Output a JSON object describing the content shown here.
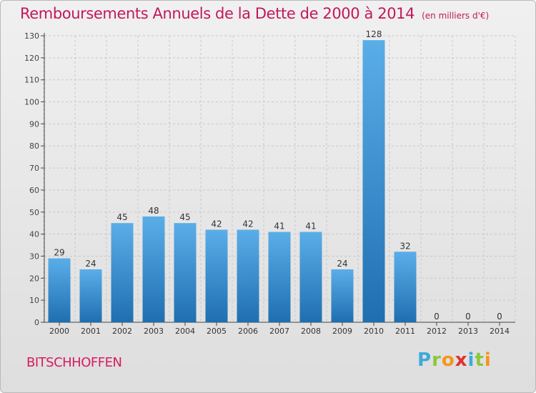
{
  "title": "Remboursements Annuels de la Dette de 2000 à 2014",
  "subtitle": "(en milliers d'€)",
  "commune": "BITSCHHOFFEN",
  "logo": {
    "letters": [
      "P",
      "r",
      "o",
      "x",
      "i",
      "t",
      "i"
    ],
    "colors": [
      "#3fa9dc",
      "#8dc63f",
      "#f7941d",
      "#e2302f",
      "#3fa9dc",
      "#8dc63f",
      "#f7941d"
    ]
  },
  "colors": {
    "title": "#c2185b",
    "bar_light": "#5aaee8",
    "bar_dark": "#1f6fb0",
    "axis": "#444444",
    "grid": "#c8c8c8"
  },
  "chart_data": {
    "type": "bar",
    "categories": [
      "2000",
      "2001",
      "2002",
      "2003",
      "2004",
      "2005",
      "2006",
      "2007",
      "2008",
      "2009",
      "2010",
      "2011",
      "2012",
      "2013",
      "2014"
    ],
    "values": [
      29,
      24,
      45,
      48,
      45,
      42,
      42,
      41,
      41,
      24,
      128,
      32,
      0,
      0,
      0
    ],
    "ylim": [
      0,
      130
    ],
    "yticks": [
      0,
      10,
      20,
      30,
      40,
      50,
      60,
      70,
      80,
      90,
      100,
      110,
      120,
      130
    ],
    "grid": true,
    "data_labels": true
  }
}
